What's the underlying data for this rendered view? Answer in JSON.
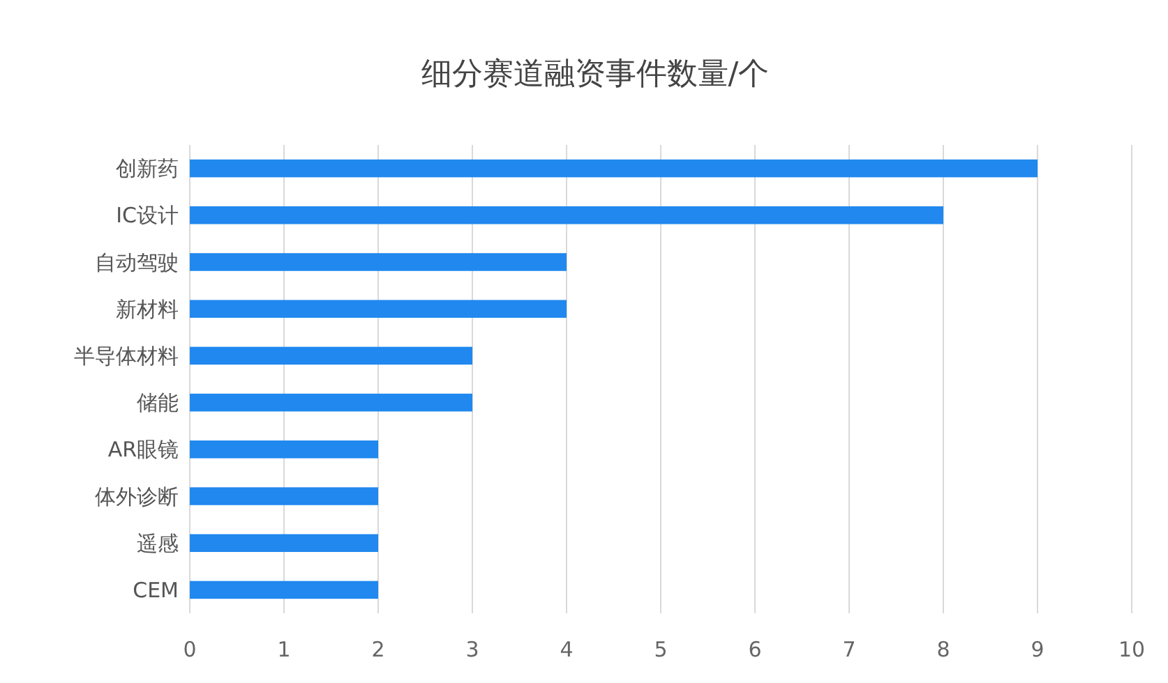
{
  "chart_data": {
    "type": "bar",
    "orientation": "horizontal",
    "title": "细分赛道融资事件数量/个",
    "categories": [
      "创新药",
      "IC设计",
      "自动驾驶",
      "新材料",
      "半导体材料",
      "储能",
      "AR眼镜",
      "体外诊断",
      "遥感",
      "CEM"
    ],
    "values": [
      9,
      8,
      4,
      4,
      3,
      3,
      2,
      2,
      2,
      2
    ],
    "color": "#2088ee",
    "xlim": [
      0,
      10
    ],
    "xticks": [
      0,
      1,
      2,
      3,
      4,
      5,
      6,
      7,
      8,
      9,
      10
    ],
    "grid": "x"
  }
}
